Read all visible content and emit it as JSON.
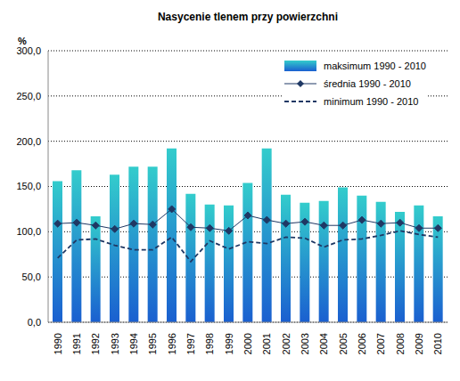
{
  "chart_data": {
    "type": "bar",
    "title": "Nasycenie tlenem przy powierzchni",
    "y_label": "%",
    "categories": [
      "1990",
      "1991",
      "1992",
      "1993",
      "1994",
      "1995",
      "1996",
      "1997",
      "1998",
      "1999",
      "2000",
      "2001",
      "2002",
      "2003",
      "2004",
      "2005",
      "2006",
      "2007",
      "2008",
      "2009",
      "2010"
    ],
    "series": [
      {
        "name": "maksimum 1990 - 2010",
        "type": "bar",
        "color": "#33cccc",
        "values": [
          156,
          168,
          117,
          163,
          172,
          172,
          192,
          142,
          130,
          129,
          154,
          192,
          141,
          132,
          134,
          149,
          140,
          133,
          122,
          129,
          117
        ]
      },
      {
        "name": "średnia 1990 - 2010",
        "type": "line",
        "color": "#1f3864",
        "marker": "diamond",
        "line_style": "solid",
        "values": [
          109,
          110,
          107,
          103,
          109,
          108,
          125,
          105,
          104,
          101,
          118,
          113,
          109,
          111,
          107,
          107,
          113,
          109,
          110,
          104,
          104
        ]
      },
      {
        "name": "minimum 1990 - 2010",
        "type": "line",
        "color": "#1f3864",
        "marker": "none",
        "line_style": "dashed",
        "values": [
          71,
          91,
          92,
          85,
          80,
          80,
          94,
          67,
          90,
          81,
          89,
          87,
          94,
          93,
          83,
          91,
          92,
          96,
          101,
          97,
          94
        ]
      }
    ],
    "ylim": [
      0,
      300
    ],
    "yticks": [
      {
        "value": 0,
        "label": "0,0"
      },
      {
        "value": 50,
        "label": "50,0"
      },
      {
        "value": 100,
        "label": "100,0"
      },
      {
        "value": 150,
        "label": "150,0"
      },
      {
        "value": 200,
        "label": "200,0"
      },
      {
        "value": 250,
        "label": "250,0"
      },
      {
        "value": 300,
        "label": "300,0"
      }
    ],
    "grid": true,
    "legend": "top-right"
  }
}
